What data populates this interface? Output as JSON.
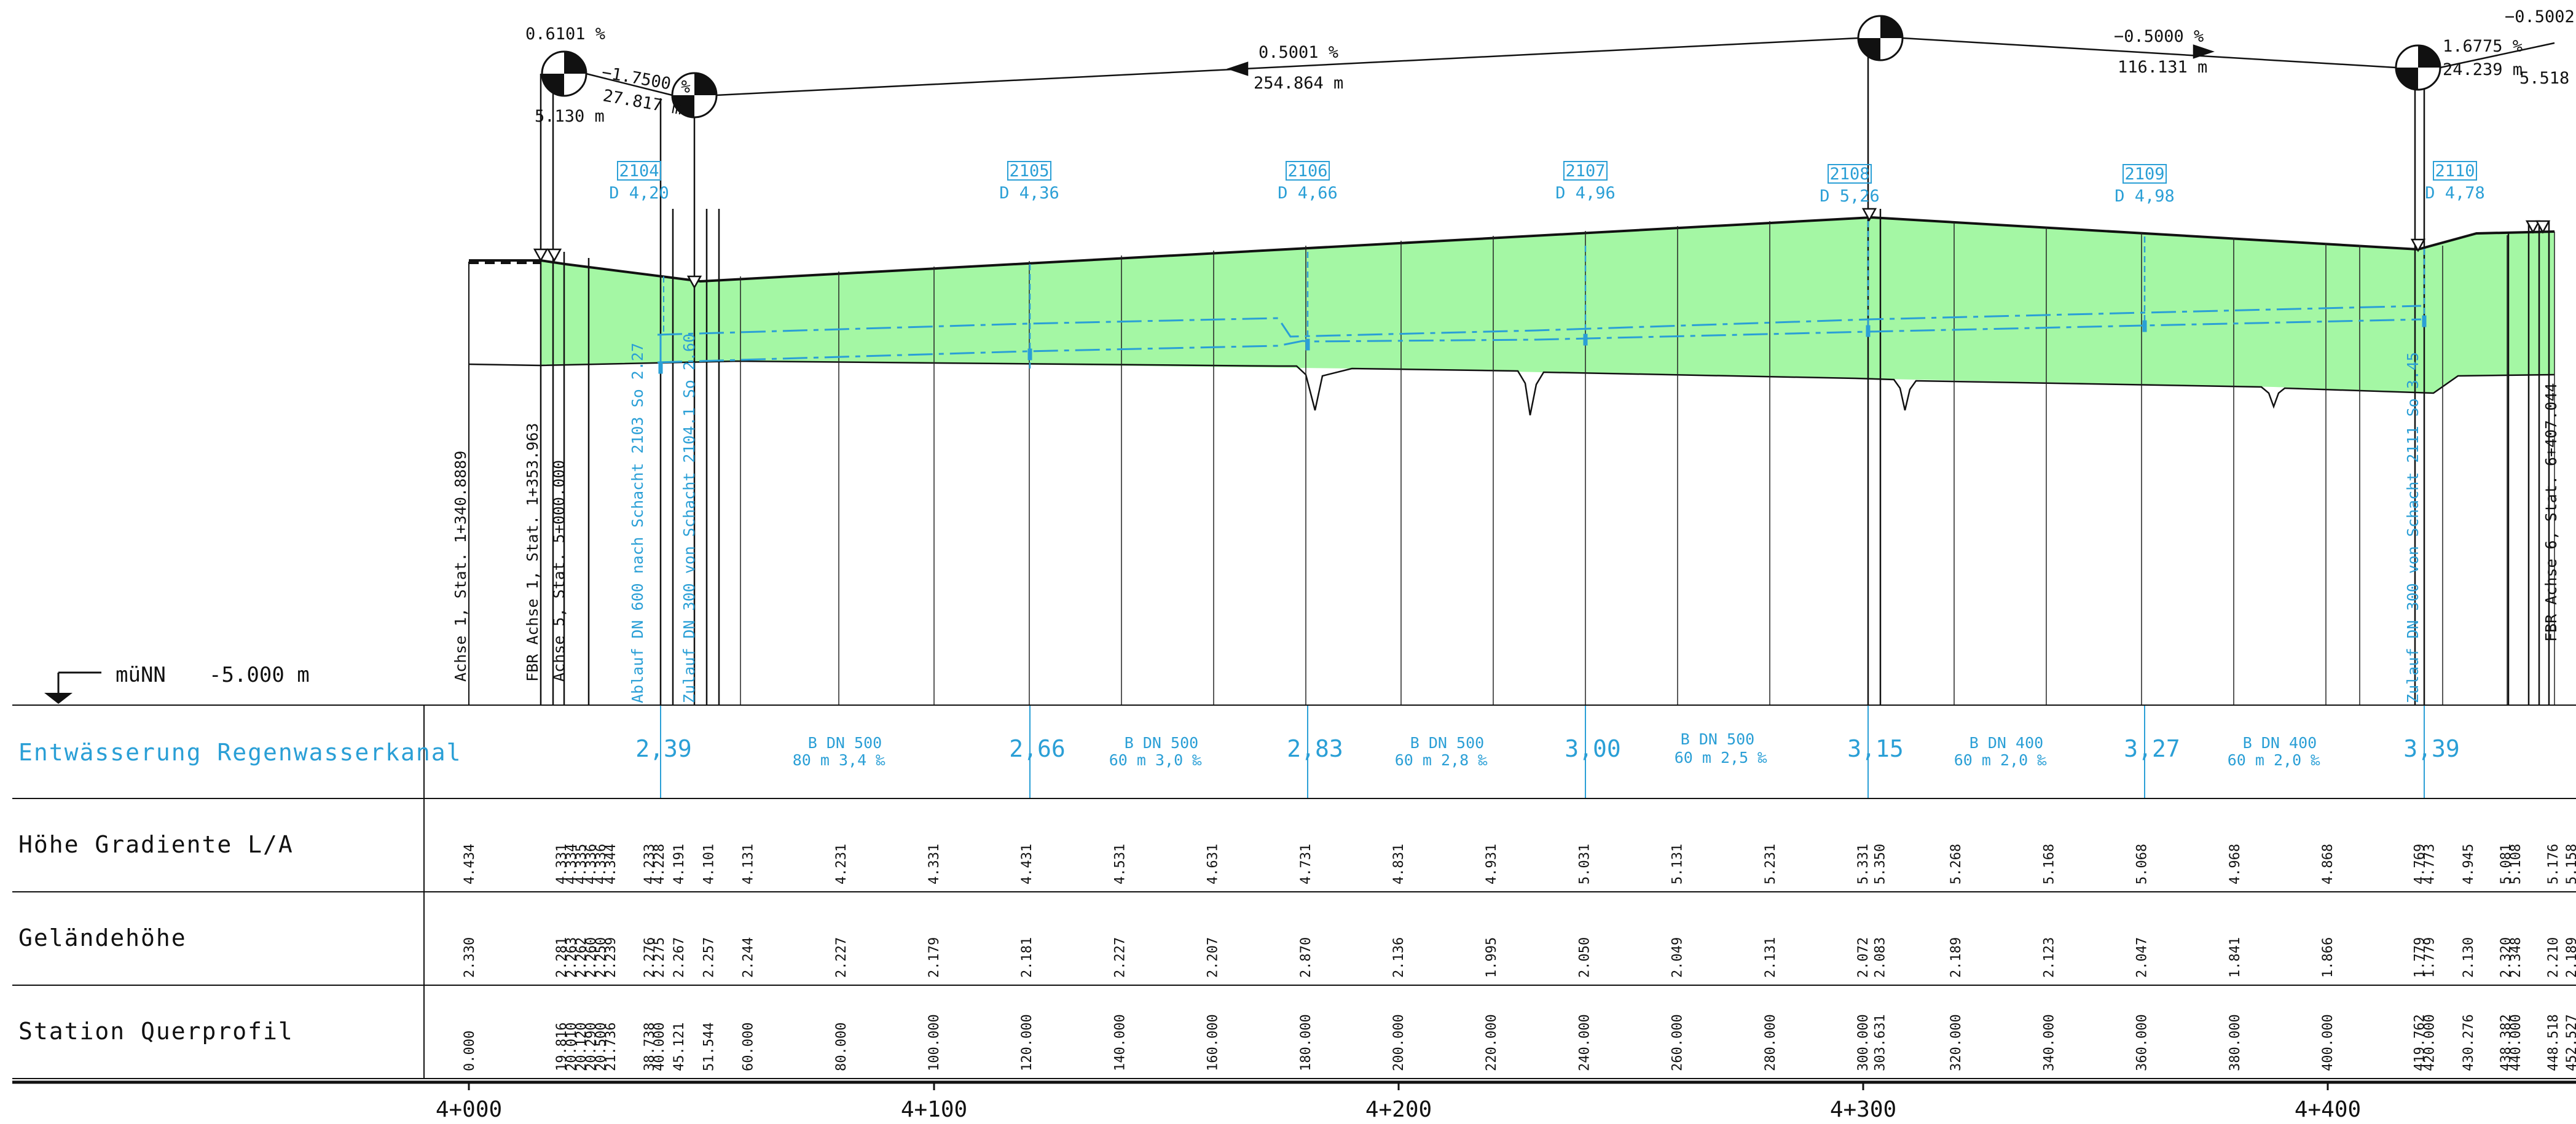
{
  "datum": {
    "label": "müNN",
    "value": "-5.000 m"
  },
  "rows": {
    "entwaesserung": "Entwässerung Regenwasserkanal",
    "gradiente": "Höhe Gradiente L/A",
    "gelaende": "Geländehöhe",
    "station": "Station Querprofil"
  },
  "axis_ticks": [
    "4+000",
    "4+100",
    "4+200",
    "4+300",
    "4+400"
  ],
  "grades": [
    {
      "pct": "0.6101 %",
      "len": "5.130 m"
    },
    {
      "pct": "−1.7500 %",
      "len": "27.817 m"
    },
    {
      "pct": "0.5001 %",
      "len": "254.864 m"
    },
    {
      "pct": "−0.5000 %",
      "len": "116.131 m"
    },
    {
      "pct": "1.6775 %",
      "len": "24.239 m"
    },
    {
      "pct": "−0.5002",
      "len": "5.518"
    }
  ],
  "manholes": [
    {
      "id": "2104",
      "depth": "D 4,20"
    },
    {
      "id": "2105",
      "depth": "D 4,36"
    },
    {
      "id": "2106",
      "depth": "D 4,66"
    },
    {
      "id": "2107",
      "depth": "D 4,96"
    },
    {
      "id": "2108",
      "depth": "D 5,26"
    },
    {
      "id": "2109",
      "depth": "D 4,98"
    },
    {
      "id": "2110",
      "depth": "D 4,78"
    }
  ],
  "vertical_notes": [
    "Achse 1, Stat. 1+340.8889",
    "FBR Achse 1, Stat. 1+353.963",
    "Achse 5, Stat. 5+000.000",
    "Ablauf DN 600 nach Schacht 2103 So 2.27",
    "Zulauf DN 300 von Schacht 2104.1 So 2.60",
    "Zulauf DN 300 von Schacht 2111 So 3.45",
    "FBR Achse 6, Stat. 6+407.044"
  ],
  "pipe_sections": [
    {
      "type": "B DN 500",
      "spec": "80 m  3,4 ‰"
    },
    {
      "type": "B DN 500",
      "spec": "60 m  3,0 ‰"
    },
    {
      "type": "B DN 500",
      "spec": "60 m  2,8 ‰"
    },
    {
      "type": "B DN 500",
      "spec": "60 m  2,5 ‰"
    },
    {
      "type": "B DN 400",
      "spec": "60 m  2,0 ‰"
    },
    {
      "type": "B DN 400",
      "spec": "60 m  2,0 ‰"
    }
  ],
  "invert_depths": [
    "2,39",
    "2,66",
    "2,83",
    "3,00",
    "3,15",
    "3,27",
    "3,39"
  ],
  "profile_values": {
    "station": [
      "0.000",
      "19.816",
      "20.010",
      "20.120",
      "20.290",
      "20.500",
      "21.736",
      "38.738",
      "40.000",
      "45.121",
      "51.544",
      "60.000",
      "80.000",
      "100.000",
      "120.000",
      "140.000",
      "160.000",
      "180.000",
      "200.000",
      "220.000",
      "240.000",
      "260.000",
      "280.000",
      "300.000",
      "303.631",
      "320.000",
      "340.000",
      "360.000",
      "380.000",
      "400.000",
      "419.762",
      "420.000",
      "430.276",
      "438.382",
      "440.000",
      "448.518",
      "452.527"
    ],
    "gradiente": [
      "4.434",
      "4.331",
      "4.334",
      "4.335",
      "4.336",
      "4.336",
      "4.344",
      "4.233",
      "4.228",
      "4.191",
      "4.101",
      "4.131",
      "4.231",
      "4.331",
      "4.431",
      "4.531",
      "4.631",
      "4.731",
      "4.831",
      "4.931",
      "5.031",
      "5.131",
      "5.231",
      "5.331",
      "5.350",
      "5.268",
      "5.168",
      "5.068",
      "4.968",
      "4.868",
      "4.769",
      "4.773",
      "4.945",
      "5.081",
      "5.108",
      "5.176",
      "5.158"
    ],
    "gelaende": [
      "2.330",
      "2.281",
      "2.263",
      "2.262",
      "2.260",
      "2.250",
      "2.239",
      "2.276",
      "2.275",
      "2.267",
      "2.257",
      "2.244",
      "2.227",
      "2.179",
      "2.181",
      "2.227",
      "2.207",
      "2.870",
      "2.136",
      "1.995",
      "2.050",
      "2.049",
      "2.131",
      "2.072",
      "2.083",
      "2.189",
      "2.123",
      "2.047",
      "1.841",
      "1.866",
      "1.779",
      "1.779",
      "2.130",
      "2.320",
      "2.348",
      "2.210",
      "2.189"
    ]
  },
  "colors": {
    "fill": "#a4f7a4",
    "blue": "#2a9fd6",
    "line": "#111111"
  }
}
